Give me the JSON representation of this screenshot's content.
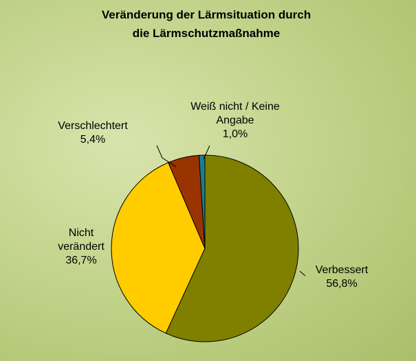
{
  "chart_data": {
    "type": "pie",
    "title": [
      "Veränderung der Lärmsituation durch",
      "die Lärmschutzmaßnahme"
    ],
    "categories": [
      "Verbessert",
      "Nicht verändert",
      "Verschlechtert",
      "Weiß nicht / Keine Angabe"
    ],
    "values": [
      56.8,
      36.7,
      5.4,
      1.0
    ],
    "value_labels": [
      "56,8%",
      "36,7%",
      "5,4%",
      "1,0%"
    ],
    "colors": [
      "#808000",
      "#ffcc00",
      "#993300",
      "#1b7f8e"
    ]
  }
}
